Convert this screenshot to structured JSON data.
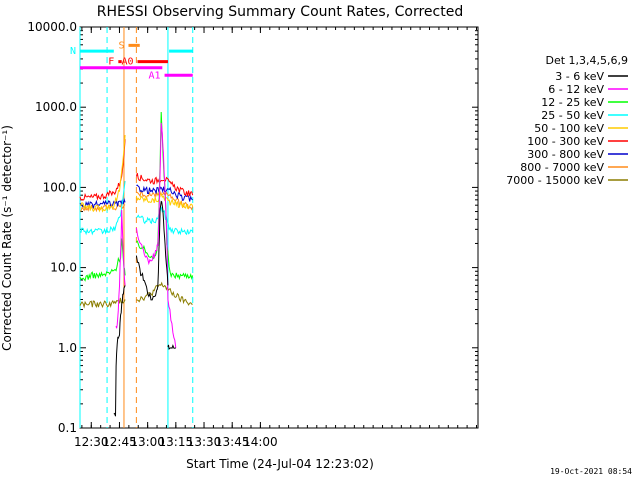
{
  "chart_data": {
    "type": "line",
    "title": "RHESSI Observing Summary Count Rates, Corrected",
    "xlabel": "Start Time (24-Jul-04 12:23:02)",
    "ylabel": "Corrected Count Rate (s⁻¹ detector⁻¹)",
    "ylog": true,
    "ylim": [
      0.1,
      10000
    ],
    "xlim_minutes": [
      12.4,
      15.93
    ],
    "x_start": "12:23:02",
    "y_ticks": [
      "0.1",
      "1.0",
      "10.0",
      "100.0",
      "1000.0",
      "10000.0"
    ],
    "x_ticks": [
      "12:30",
      "12:45",
      "13:00",
      "13:15",
      "13:30",
      "13:45",
      "14:00"
    ],
    "legend_header": "Det 1,3,4,5,6,9",
    "series": [
      {
        "name": "3 - 6 keV",
        "color": "#000000",
        "segments": [
          {
            "x": [
              12.7,
              12.715,
              12.72,
              12.73,
              12.74,
              12.75,
              12.76,
              12.77,
              12.78,
              12.79,
              12.8
            ],
            "y": [
              0.15,
              0.15,
              0.6,
              1.2,
              1.3,
              1.5,
              2.5,
              3.5,
              4.5,
              5.5,
              6
            ]
          },
          {
            "x": [
              12.9,
              12.93,
              12.97,
              13.0,
              13.03,
              13.06,
              13.08,
              13.09,
              13.1,
              13.11,
              13.12,
              13.13,
              13.14,
              13.15,
              13.16,
              13.17,
              13.18
            ],
            "y": [
              15,
              9,
              7,
              5,
              4,
              4.5,
              5,
              6,
              15,
              50,
              70,
              60,
              40,
              25,
              15,
              10,
              6
            ]
          },
          {
            "x": [
              13.18,
              13.19,
              13.25
            ],
            "y": [
              1.0,
              1.0,
              1.0
            ]
          }
        ]
      },
      {
        "name": "6 - 12 keV",
        "color": "#ff00ff",
        "segments": [
          {
            "x": [
              12.72,
              12.73,
              12.74,
              12.75,
              12.76,
              12.77,
              12.78,
              12.79,
              12.8
            ],
            "y": [
              1.8,
              2,
              3,
              6,
              15,
              50,
              20,
              10,
              6
            ]
          },
          {
            "x": [
              12.9,
              12.93,
              12.97,
              13.0,
              13.03,
              13.06,
              13.08,
              13.09,
              13.1,
              13.11,
              13.12,
              13.13,
              13.14,
              13.15,
              13.16,
              13.17,
              13.18,
              13.25
            ],
            "y": [
              30,
              20,
              15,
              12,
              13,
              14,
              16,
              20,
              40,
              150,
              600,
              450,
              250,
              120,
              60,
              25,
              4,
              1
            ]
          }
        ]
      },
      {
        "name": "12 - 25 keV",
        "color": "#00ff00",
        "segments": [
          {
            "x": [
              12.4,
              12.5,
              12.6,
              12.7,
              12.72,
              12.74,
              12.76,
              12.77,
              12.78,
              12.79,
              12.8
            ],
            "y": [
              7,
              8,
              8,
              9,
              10,
              12,
              14,
              25,
              15,
              10,
              8
            ]
          },
          {
            "x": [
              12.9,
              12.95,
              13.0,
              13.05,
              13.08,
              13.09,
              13.1,
              13.11,
              13.12,
              13.13,
              13.14,
              13.15,
              13.16,
              13.17,
              13.2,
              13.3,
              13.4
            ],
            "y": [
              20,
              18,
              15,
              14,
              15,
              20,
              50,
              200,
              900,
              400,
              200,
              120,
              60,
              20,
              8,
              8,
              8
            ]
          }
        ]
      },
      {
        "name": "25 - 50 keV",
        "color": "#00ffff",
        "segments": [
          {
            "x": [
              12.4,
              12.5,
              12.6,
              12.7,
              12.75,
              12.78,
              12.8
            ],
            "y": [
              30,
              28,
              28,
              30,
              40,
              70,
              120
            ]
          },
          {
            "x": [
              12.9,
              12.95,
              13.0,
              13.05,
              13.08,
              13.1,
              13.12,
              13.14,
              13.2,
              13.3,
              13.4
            ],
            "y": [
              45,
              40,
              38,
              38,
              40,
              45,
              55,
              50,
              30,
              28,
              28
            ]
          }
        ]
      },
      {
        "name": "50 - 100 keV",
        "color": "#ffcc00",
        "segments": [
          {
            "x": [
              12.4,
              12.5,
              12.6,
              12.7,
              12.75,
              12.78,
              12.8
            ],
            "y": [
              60,
              55,
              55,
              60,
              90,
              200,
              450
            ]
          },
          {
            "x": [
              12.9,
              12.95,
              13.0,
              13.05,
              13.1,
              13.12,
              13.15,
              13.2,
              13.3,
              13.4
            ],
            "y": [
              75,
              72,
              70,
              68,
              72,
              80,
              75,
              65,
              60,
              58
            ]
          }
        ]
      },
      {
        "name": "100 - 300 keV",
        "color": "#ff0000",
        "segments": [
          {
            "x": [
              12.4,
              12.5,
              12.6,
              12.7,
              12.75,
              12.78,
              12.8
            ],
            "y": [
              75,
              75,
              78,
              85,
              110,
              170,
              400
            ]
          },
          {
            "x": [
              12.9,
              12.95,
              13.0,
              13.05,
              13.1,
              13.12,
              13.15,
              13.2,
              13.3,
              13.4
            ],
            "y": [
              140,
              130,
              125,
              120,
              125,
              130,
              130,
              110,
              90,
              80
            ]
          }
        ]
      },
      {
        "name": "300 - 800 keV",
        "color": "#0000cc",
        "segments": [
          {
            "x": [
              12.4,
              12.5,
              12.6,
              12.7,
              12.75,
              12.8
            ],
            "y": [
              60,
              60,
              62,
              62,
              63,
              65
            ]
          },
          {
            "x": [
              12.9,
              12.95,
              13.0,
              13.05,
              13.1,
              13.15,
              13.2,
              13.3,
              13.4
            ],
            "y": [
              100,
              95,
              92,
              90,
              92,
              95,
              90,
              75,
              70
            ]
          }
        ]
      },
      {
        "name": "800 - 7000 keV",
        "color": "#ff8c1a",
        "segments": [
          {
            "x": [
              12.4,
              12.5,
              12.6,
              12.7,
              12.75,
              12.8
            ],
            "y": [
              55,
              55,
              56,
              57,
              58,
              60
            ]
          },
          {
            "x": [
              12.9,
              12.95,
              13.0,
              13.05,
              13.1,
              13.15,
              13.2,
              13.3,
              13.4
            ],
            "y": [
              85,
              82,
              80,
              80,
              82,
              85,
              75,
              62,
              58
            ]
          }
        ]
      },
      {
        "name": "7000 - 15000 keV",
        "color": "#8b7d00",
        "segments": [
          {
            "x": [
              12.4,
              12.5,
              12.6,
              12.7,
              12.75,
              12.8
            ],
            "y": [
              3.5,
              3.5,
              3.5,
              3.6,
              3.8,
              4
            ]
          },
          {
            "x": [
              12.9,
              12.95,
              13.0,
              13.05,
              13.1,
              13.15,
              13.2,
              13.3,
              13.4
            ],
            "y": [
              4,
              4.2,
              4.5,
              5,
              6,
              6,
              5,
              4,
              3.5
            ]
          }
        ]
      }
    ],
    "flags": [
      {
        "label": "N",
        "color": "#00ffff",
        "x_ranges": [
          [
            12.4,
            12.7
          ],
          [
            13.19,
            13.4
          ]
        ],
        "level": 5000
      },
      {
        "label": "S",
        "color": "#ff8c1a",
        "x_ranges": [
          [
            12.83,
            12.93
          ]
        ],
        "level": 5900
      },
      {
        "label": "F",
        "color": "#ff0000",
        "x_ranges": [
          [
            12.74,
            12.77
          ]
        ],
        "level": 3700
      },
      {
        "label": "A0",
        "color": "#ff0000",
        "x_ranges": [
          [
            12.91,
            13.18
          ]
        ],
        "level": 3700
      },
      {
        "label": "",
        "color": "#ff00ff",
        "x_ranges": [
          [
            12.4,
            13.13
          ]
        ],
        "level": 3100
      },
      {
        "label": "A1",
        "color": "#ff00ff",
        "x_ranges": [
          [
            13.15,
            13.4
          ]
        ],
        "level": 2500
      }
    ],
    "vlines": [
      {
        "x": 12.4,
        "color": "#00ffff",
        "style": "solid"
      },
      {
        "x": 12.64,
        "color": "#00ffff",
        "style": "dashed"
      },
      {
        "x": 12.79,
        "color": "#ff8c1a",
        "style": "solid"
      },
      {
        "x": 12.9,
        "color": "#ff8c1a",
        "style": "dashed"
      },
      {
        "x": 13.18,
        "color": "#00ffff",
        "style": "solid"
      },
      {
        "x": 13.4,
        "color": "#00ffff",
        "style": "dashed"
      }
    ],
    "legend_position": "right",
    "grid": false
  },
  "footer_timestamp": "19-Oct-2021 08:54"
}
